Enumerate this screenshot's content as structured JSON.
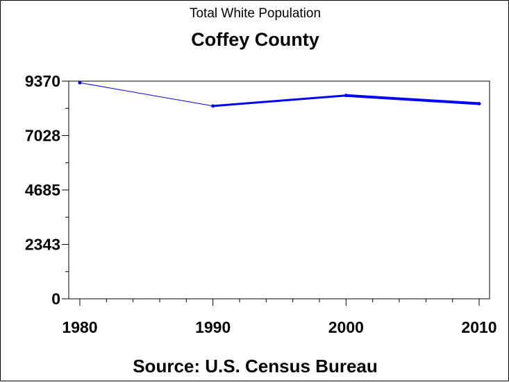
{
  "chart_data": {
    "type": "line",
    "title": "Total White Population",
    "subtitle": "Coffey County",
    "source": "Source: U.S. Census Bureau",
    "x": [
      1980,
      1990,
      2000,
      2010
    ],
    "x_tick_labels": [
      "1980",
      "1990",
      "2000",
      "2010"
    ],
    "y_tick_labels": [
      "0",
      "2343",
      "4685",
      "7028",
      "9370"
    ],
    "y_ticks": [
      0,
      2343,
      4685,
      7028,
      9370
    ],
    "ylim": [
      0,
      9370
    ],
    "xlim": [
      1980,
      2010
    ],
    "series": [
      {
        "values": [
          9300,
          8300,
          8750,
          8400
        ]
      }
    ],
    "line_width_by_segment": [
      1,
      3,
      4
    ],
    "grid": false,
    "colors": {
      "line": "#0000ff",
      "axis": "#000000"
    }
  }
}
